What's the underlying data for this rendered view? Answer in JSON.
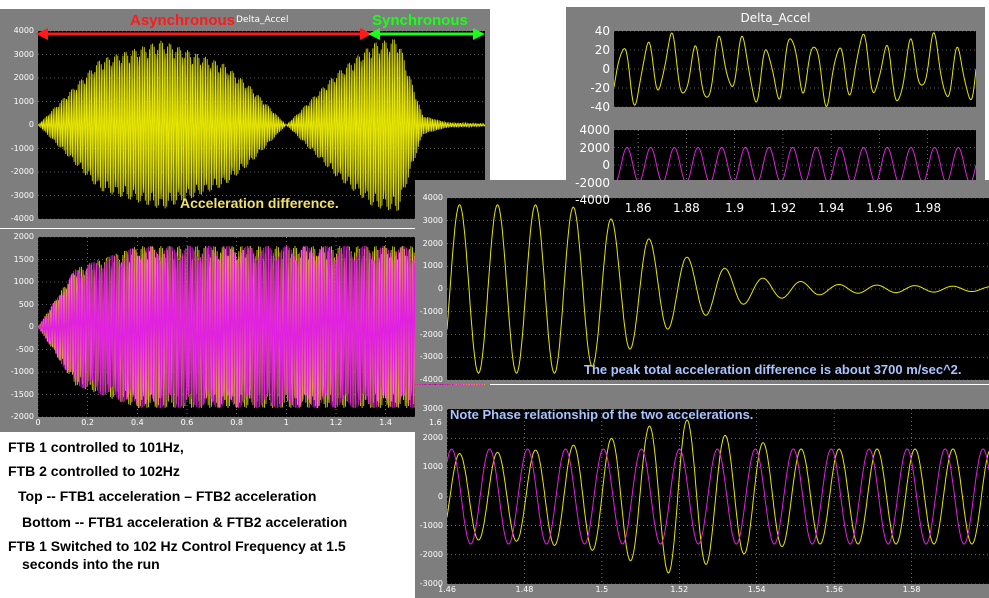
{
  "captions": {
    "line1": "FTB 1 controlled to 101Hz,",
    "line2": "FTB 2 controlled to 102Hz",
    "line3": "Top -- FTB1 acceleration – FTB2 acceleration",
    "line4": "Bottom -- FTB1 acceleration & FTB2 acceleration",
    "line5": "FTB 1 Switched to 102 Hz Control Frequency at 1.5",
    "line6": "seconds into the run"
  },
  "annotations": {
    "asynchronous": "Asynchronous",
    "synchronous": "Synchronous",
    "small_title": "Delta_Accel",
    "accel_diff": "Acceleration difference.",
    "peak_note": "The peak total acceleration difference is about 3700 m/sec^2.",
    "phase_note": "Note Phase relationship of the two accelerations."
  },
  "colors": {
    "yellow": "#e6e600",
    "magenta": "#e020e0",
    "red_arrow": "#ff1a1a",
    "green_arrow": "#1aff1a",
    "panel_gray": "#7e7e7e",
    "note_blue": "#a8c4ff"
  },
  "chart_data": [
    {
      "id": "left-top",
      "type": "line",
      "title": "Delta_Accel",
      "xlim": [
        0,
        1.8
      ],
      "ylim": [
        -4000,
        4000
      ],
      "yticks": [
        "4000",
        "3000",
        "2000",
        "1000",
        "0",
        "-1000",
        "-2000",
        "-3000",
        "-4000"
      ],
      "xticks": [],
      "series": [
        {
          "color": "#e6e600",
          "envelope_x": [
            0,
            0.25,
            0.5,
            0.75,
            0.85,
            1.0,
            1.2,
            1.35,
            1.45,
            1.5,
            1.55,
            1.65,
            1.8
          ],
          "envelope_y": [
            0,
            2800,
            3600,
            2600,
            1700,
            0,
            2200,
            3500,
            3700,
            2000,
            400,
            100,
            50
          ]
        }
      ]
    },
    {
      "id": "left-bottom",
      "type": "line",
      "xlim": [
        0,
        1.8
      ],
      "ylim": [
        -2000,
        2000
      ],
      "yticks": [
        "2000",
        "1500",
        "1000",
        "500",
        "0",
        "-500",
        "-1000",
        "-1500",
        "-2000"
      ],
      "xticks": [
        "0",
        "0.2",
        "0.4",
        "0.6",
        "0.8",
        "1",
        "1.2",
        "1.4",
        "1.6"
      ],
      "series": [
        {
          "name": "",
          "color": "#e6e600",
          "envelope_x": [
            0,
            0.15,
            0.4,
            1.8
          ],
          "envelope_y": [
            0,
            1300,
            1800,
            1800
          ]
        },
        {
          "name": "",
          "color": "#e020e0",
          "envelope_x": [
            0,
            0.15,
            0.4,
            1.8
          ],
          "envelope_y": [
            0,
            1300,
            1800,
            1800
          ]
        }
      ]
    },
    {
      "id": "top-right-upper",
      "type": "line",
      "title": "Delta_Accel",
      "xlim": [
        1.85,
        2.0
      ],
      "ylim": [
        -40,
        40
      ],
      "yticks": [
        "40",
        "20",
        "0",
        "-20",
        "-40"
      ],
      "xticks": [],
      "series": [
        {
          "color": "#e6e600",
          "amplitude": 28,
          "freq": 101
        }
      ]
    },
    {
      "id": "top-right-lower",
      "type": "line",
      "xlim": [
        1.85,
        2.0
      ],
      "ylim": [
        -4000,
        4000
      ],
      "yticks": [
        "4000",
        "2000",
        "0",
        "-2000",
        "-4000"
      ],
      "xticks": [
        "1.86",
        "1.88",
        "1.9",
        "1.92",
        "1.94",
        "1.96",
        "1.98"
      ],
      "series": [
        {
          "color": "#e020e0",
          "amplitude": 2000,
          "freq": 102
        }
      ]
    },
    {
      "id": "middle-right",
      "type": "line",
      "xlim": [
        1.46,
        1.6
      ],
      "ylim": [
        -4000,
        4000
      ],
      "yticks": [
        "4000",
        "3000",
        "2000",
        "1000",
        "0",
        "-1000",
        "-2000",
        "-3000",
        "-4000"
      ],
      "xticks": [],
      "series": [
        {
          "color": "#e6e600",
          "envelope_x": [
            1.46,
            1.49,
            1.5,
            1.52,
            1.54,
            1.56,
            1.6
          ],
          "envelope_y": [
            3700,
            3700,
            3300,
            1500,
            500,
            200,
            100
          ]
        }
      ]
    },
    {
      "id": "bottom-right",
      "type": "line",
      "xlim": [
        1.46,
        1.6
      ],
      "ylim": [
        -3500,
        3500
      ],
      "yticks": [
        "3000",
        "2000",
        "1000",
        "0",
        "-1000",
        "-2000",
        "-3000"
      ],
      "xticks": [
        "1.46",
        "1.48",
        "1.5",
        "1.52",
        "1.54",
        "1.56",
        "1.58"
      ],
      "series": [
        {
          "color": "#e6e600",
          "envelope_x": [
            1.46,
            1.48,
            1.5,
            1.52,
            1.53,
            1.55,
            1.6
          ],
          "envelope_y": [
            1700,
            1800,
            2200,
            3200,
            2500,
            1900,
            1900
          ]
        },
        {
          "color": "#e020e0",
          "amplitude": 1900,
          "freq": 102
        }
      ]
    }
  ]
}
